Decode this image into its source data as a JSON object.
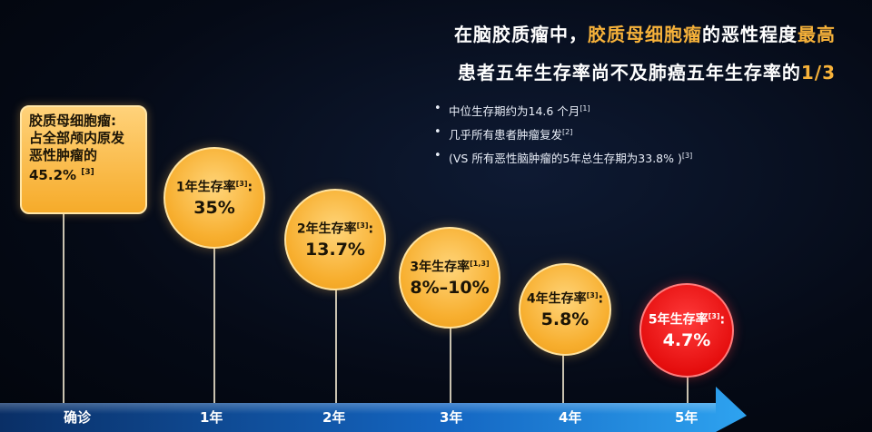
{
  "headline": {
    "line1_a": "在脑胶质瘤中，",
    "line1_hl": "胶质母细胞瘤",
    "line1_b": "的恶性程度",
    "line1_hl2": "最高",
    "line2_a": "患者五年生存率尚不及肺癌五年生存率的",
    "line2_hl": "1/3"
  },
  "bullets": [
    {
      "text": "中位生存期约为14.6 个月",
      "ref": "[1]"
    },
    {
      "text": "几乎所有患者肿瘤复发",
      "ref": "[2]"
    },
    {
      "text": "(VS 所有恶性脑肿瘤的5年总生存期为33.8% )",
      "ref": "[3]"
    }
  ],
  "bullet_symbol": "•",
  "box": {
    "line1": "胶质母细胞瘤:",
    "line2": "占全部颅内原发",
    "line3": "恶性肿瘤的",
    "value": "45.2%",
    "ref": "[3]"
  },
  "milestones": [
    {
      "label": "1年生存率",
      "ref": "[3]",
      "colon": ":",
      "value": "35%"
    },
    {
      "label": "2年生存率",
      "ref": "[3]",
      "colon": ":",
      "value": "13.7%"
    },
    {
      "label": "3年生存率",
      "ref": "[1,3]",
      "colon": "",
      "value": "8%–10%"
    },
    {
      "label": "4年生存率",
      "ref": "[3]",
      "colon": ":",
      "value": "5.8%"
    },
    {
      "label": "5年生存率",
      "ref": "[3]",
      "colon": ":",
      "value": "4.7%"
    }
  ],
  "timeline": {
    "ticks": [
      "确诊",
      "1年",
      "2年",
      "3年",
      "4年",
      "5年"
    ]
  },
  "colors": {
    "highlight": "#f7b23a",
    "circle": "#f7ae2e",
    "circle_last": "#e50e0e",
    "arrow": "#1e8fe0"
  }
}
